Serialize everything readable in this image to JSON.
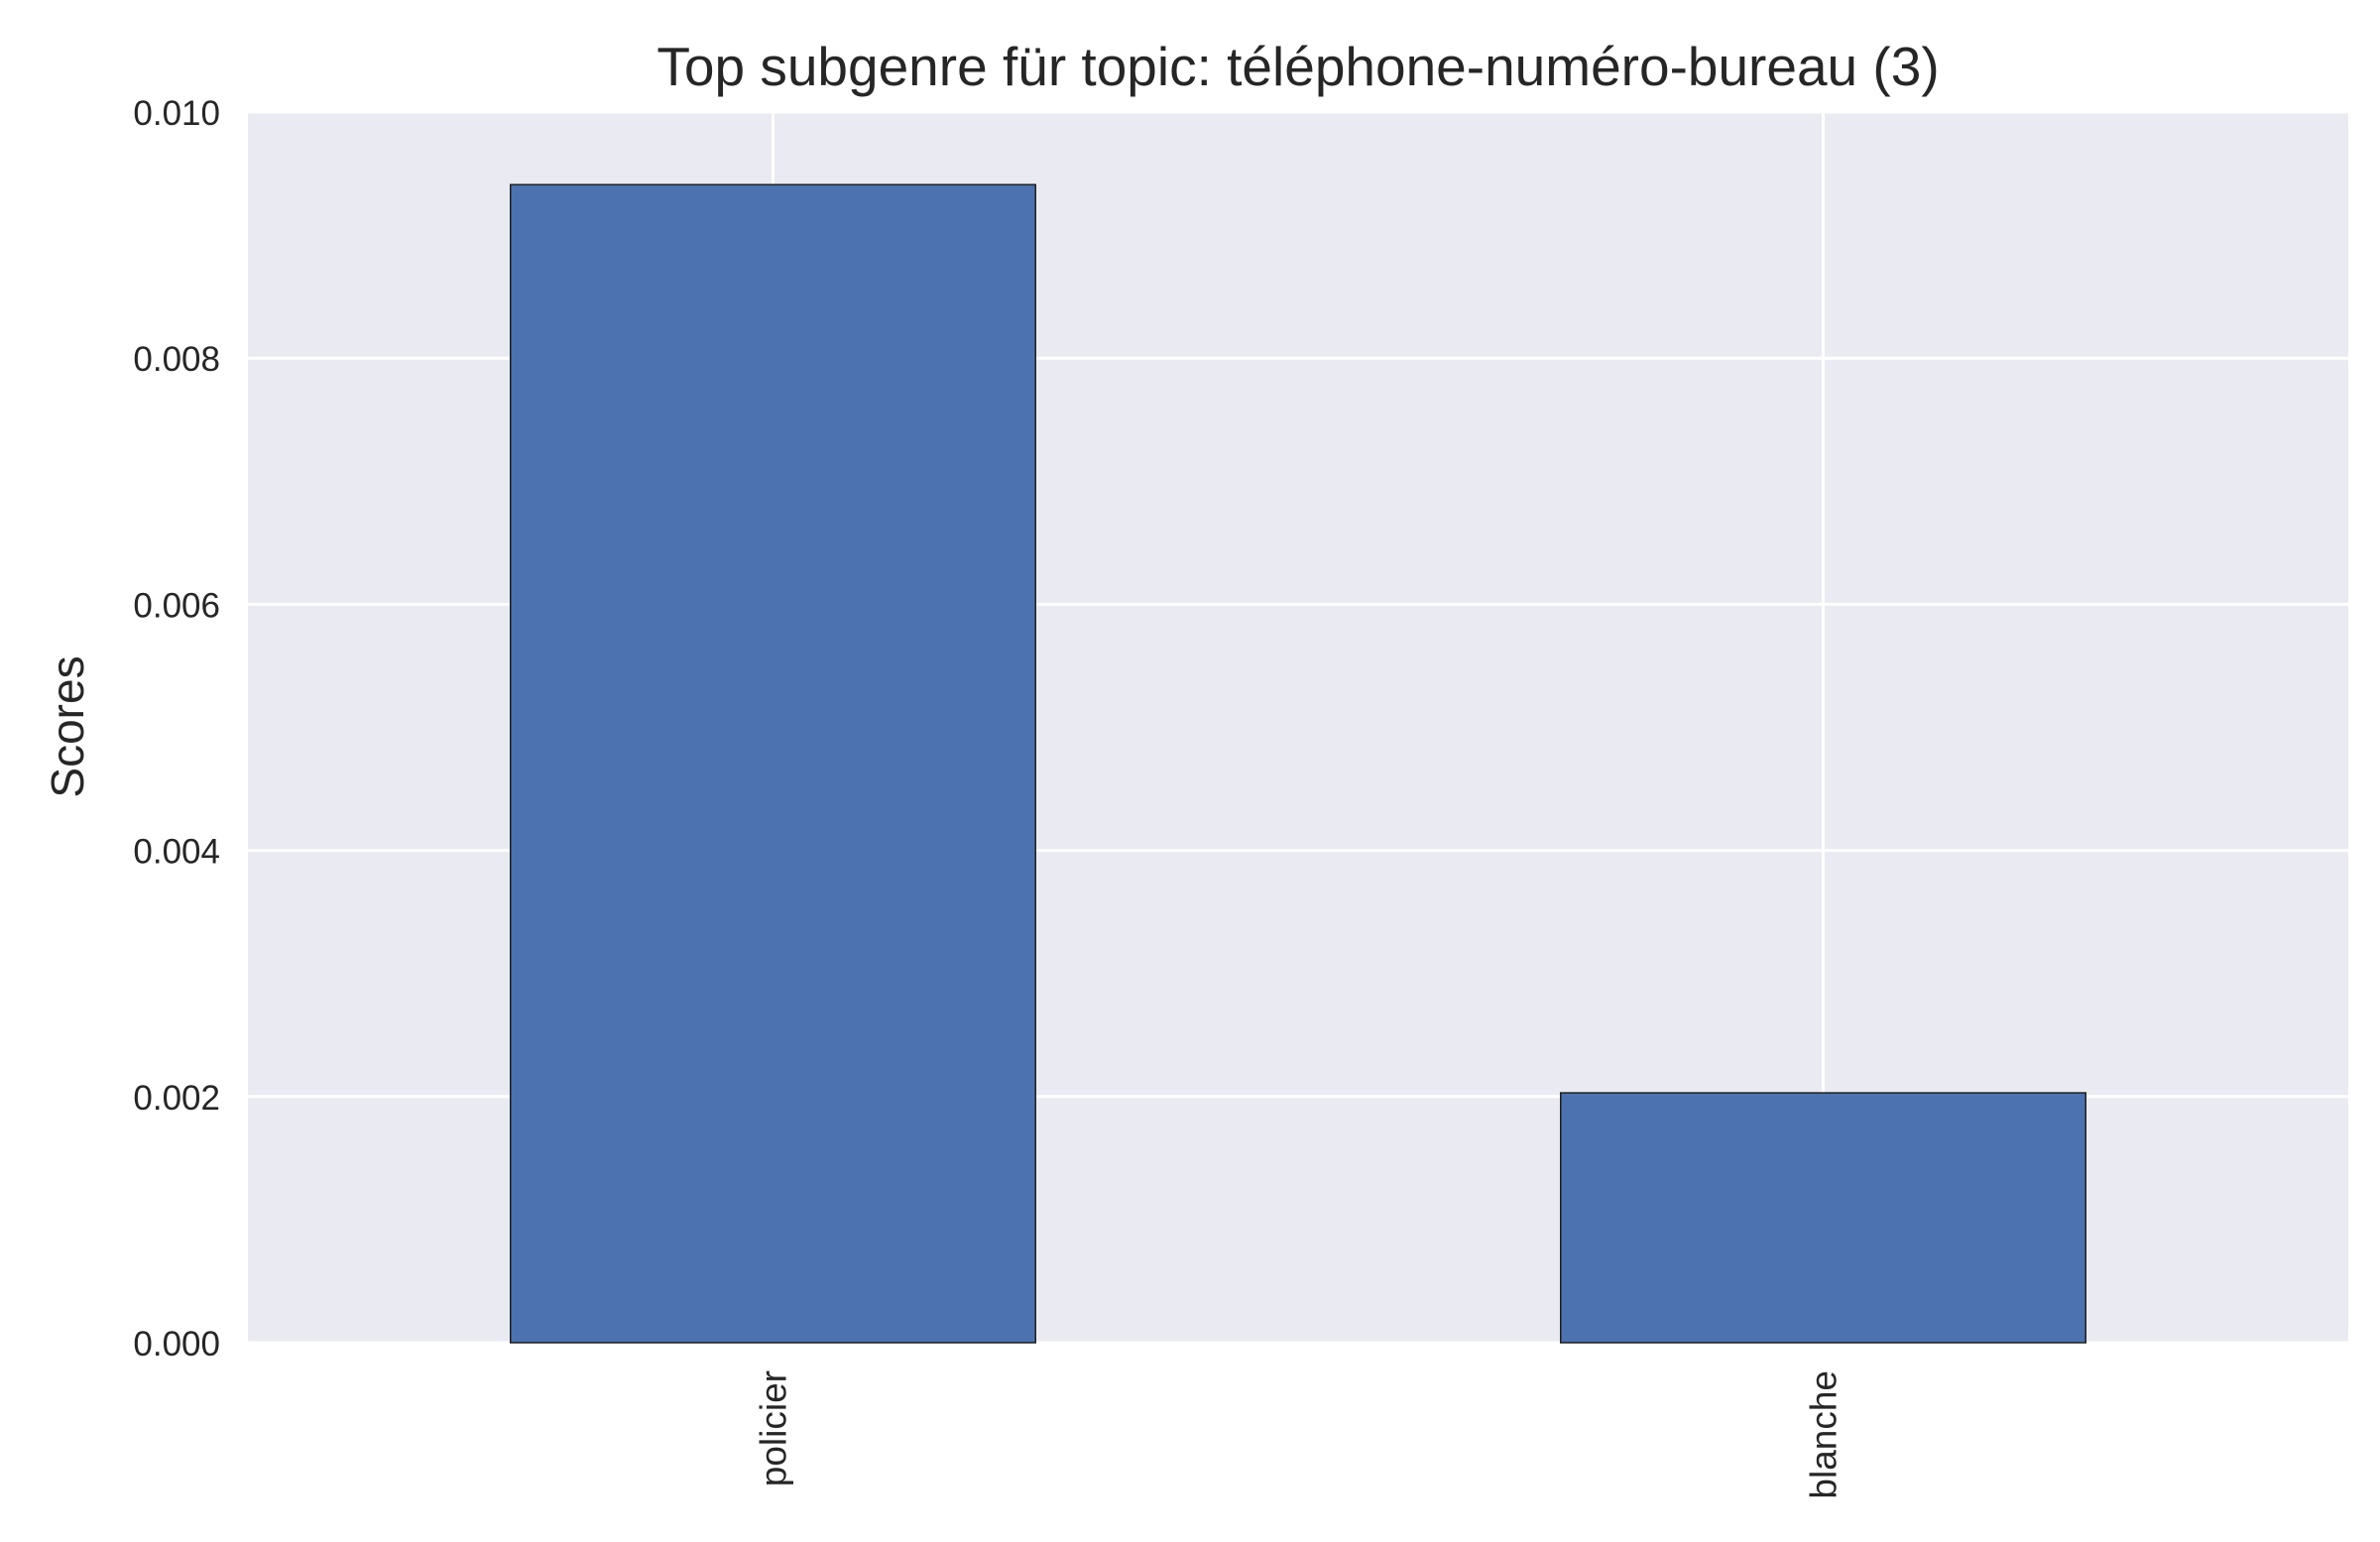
{
  "chart_data": {
    "type": "bar",
    "title": "Top subgenre für topic: téléphone-numéro-bureau (3)",
    "ylabel": "Scores",
    "xlabel": "",
    "categories": [
      "policier",
      "blanche"
    ],
    "values": [
      0.00941,
      0.00203
    ],
    "ylim": [
      0,
      0.01
    ],
    "yticks": [
      "0.000",
      "0.002",
      "0.004",
      "0.006",
      "0.008",
      "0.010"
    ],
    "grid": true,
    "legend": "none",
    "colors": {
      "bar": "#4c72b0",
      "bar_edge": "#1f1f1f",
      "plot_background": "#eaeaf2",
      "grid": "#ffffff",
      "text": "#262626"
    }
  }
}
